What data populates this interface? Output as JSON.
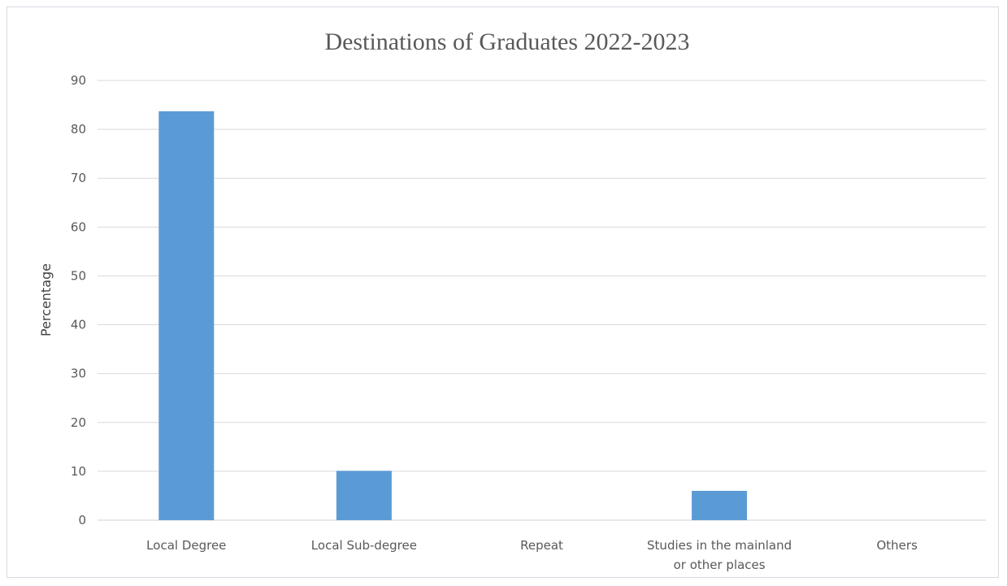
{
  "chart_data": {
    "type": "bar",
    "title": "Destinations of Graduates 2022-2023",
    "ylabel": "Percentage",
    "xlabel": "",
    "categories": [
      [
        "Local Degree"
      ],
      [
        "Local Sub-degree"
      ],
      [
        "Repeat"
      ],
      [
        "Studies in the mainland",
        "or other places"
      ],
      [
        "Others"
      ]
    ],
    "values": [
      83.7,
      10.1,
      0,
      6.0,
      0
    ],
    "ylim": [
      0,
      90
    ],
    "yticks": [
      0,
      10,
      20,
      30,
      40,
      50,
      60,
      70,
      80,
      90
    ],
    "grid": true,
    "legend": "none",
    "colors": {
      "bar": "#5b9bd5"
    }
  }
}
